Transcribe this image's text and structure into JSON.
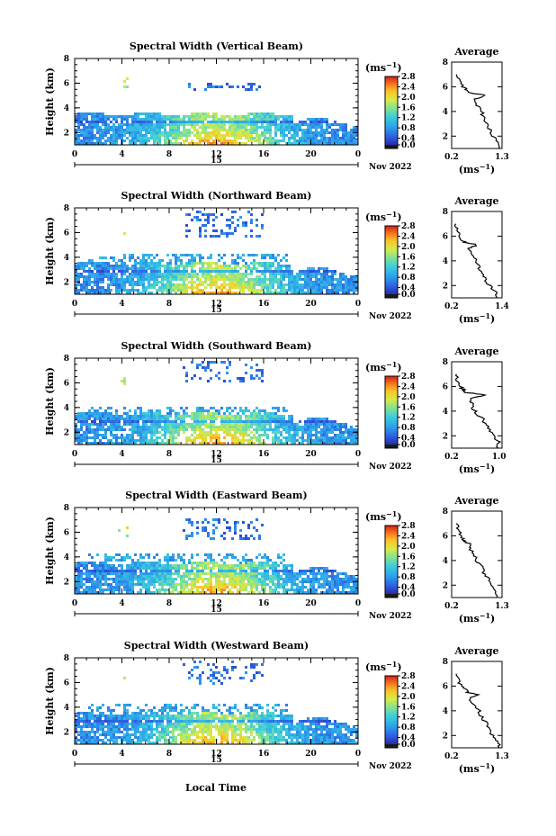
{
  "figure": {
    "xlabel": "Local Time",
    "month_label": "Nov 2022",
    "day_label": "15",
    "colorbar_unit": "(ms",
    "unit_exponent": "−1",
    "avg_title": "Average",
    "avg_xunit": "(ms",
    "colorbar_ticks": [
      "0.0",
      "0.4",
      "0.8",
      "1.2",
      "1.6",
      "2.0",
      "2.4",
      "2.8"
    ]
  },
  "chart_data": [
    {
      "type": "heatmap",
      "title": "Spectral Width (Vertical Beam)",
      "ylabel": "Height (km)",
      "x_ticks": [
        "0",
        "4",
        "8",
        "12",
        "16",
        "20",
        "0"
      ],
      "xlim": [
        0,
        24
      ],
      "ylim": [
        1,
        8
      ],
      "y_ticks": [
        "2",
        "4",
        "6",
        "8"
      ],
      "colorbar_range": [
        0.0,
        2.8
      ],
      "seed": 11,
      "top_cloud_km": [
        5.5,
        6.2
      ],
      "profile": {
        "type": "line",
        "title": "Average",
        "xlim": [
          0.2,
          1.3
        ],
        "x_ticks": [
          "0.2",
          "1.3"
        ],
        "ylim": [
          1,
          8
        ],
        "y_ticks": [
          "2",
          "4",
          "6",
          "8"
        ],
        "height_km": [
          1.0,
          1.5,
          2.0,
          2.5,
          3.0,
          3.5,
          4.0,
          4.5,
          5.0,
          5.3,
          5.5,
          5.7,
          6.0,
          6.5,
          7.0
        ],
        "width_ms": [
          1.25,
          1.2,
          1.1,
          1.05,
          0.95,
          0.9,
          0.85,
          0.75,
          0.7,
          0.95,
          0.6,
          0.55,
          0.45,
          0.35,
          0.3
        ]
      }
    },
    {
      "type": "heatmap",
      "title": "Spectral Width (Northward Beam)",
      "ylabel": "Height (km)",
      "x_ticks": [
        "0",
        "4",
        "8",
        "12",
        "16",
        "20",
        "0"
      ],
      "xlim": [
        0,
        24
      ],
      "ylim": [
        1,
        8
      ],
      "y_ticks": [
        "2",
        "4",
        "6",
        "8"
      ],
      "colorbar_range": [
        0.0,
        2.8
      ],
      "seed": 23,
      "top_cloud_km": [
        5.8,
        7.8
      ],
      "profile": {
        "type": "line",
        "title": "Average",
        "xlim": [
          0.2,
          1.4
        ],
        "x_ticks": [
          "0.2",
          "1.4"
        ],
        "ylim": [
          1,
          8
        ],
        "y_ticks": [
          "2",
          "4",
          "6",
          "8"
        ],
        "height_km": [
          1.0,
          1.5,
          2.0,
          2.5,
          3.0,
          3.5,
          4.0,
          4.5,
          5.0,
          5.3,
          5.5,
          5.7,
          6.0,
          6.5,
          7.0
        ],
        "width_ms": [
          1.3,
          1.25,
          1.1,
          1.0,
          0.9,
          0.85,
          0.8,
          0.7,
          0.6,
          0.8,
          0.5,
          0.45,
          0.4,
          0.35,
          0.3
        ]
      }
    },
    {
      "type": "heatmap",
      "title": "Spectral Width (Southward Beam)",
      "ylabel": "Height (km)",
      "x_ticks": [
        "0",
        "4",
        "8",
        "12",
        "16",
        "20",
        "0"
      ],
      "xlim": [
        0,
        24
      ],
      "ylim": [
        1,
        8
      ],
      "y_ticks": [
        "2",
        "4",
        "6",
        "8"
      ],
      "colorbar_range": [
        0.0,
        2.8
      ],
      "seed": 37,
      "top_cloud_km": [
        6.2,
        7.8
      ],
      "profile": {
        "type": "line",
        "title": "Average",
        "xlim": [
          0.2,
          1.05
        ],
        "x_ticks": [
          "0.2",
          "1.0"
        ],
        "ylim": [
          1,
          8
        ],
        "y_ticks": [
          "2",
          "4",
          "6",
          "8"
        ],
        "height_km": [
          1.0,
          1.5,
          2.0,
          2.5,
          3.0,
          3.5,
          4.0,
          4.5,
          5.0,
          5.3,
          5.5,
          5.7,
          6.0,
          6.5,
          7.0
        ],
        "width_ms": [
          1.0,
          0.98,
          0.9,
          0.85,
          0.75,
          0.7,
          0.6,
          0.55,
          0.5,
          0.8,
          0.45,
          0.4,
          0.35,
          0.3,
          0.28
        ]
      }
    },
    {
      "type": "heatmap",
      "title": "Spectral Width (Eastward Beam)",
      "ylabel": "Height (km)",
      "x_ticks": [
        "0",
        "4",
        "8",
        "12",
        "16",
        "20",
        "0"
      ],
      "xlim": [
        0,
        24
      ],
      "ylim": [
        1,
        8
      ],
      "y_ticks": [
        "2",
        "4",
        "6",
        "8"
      ],
      "colorbar_range": [
        0.0,
        2.8
      ],
      "seed": 41,
      "top_cloud_km": [
        5.5,
        7.2
      ],
      "profile": {
        "type": "line",
        "title": "Average",
        "xlim": [
          0.2,
          1.3
        ],
        "x_ticks": [
          "0.2",
          "1.3"
        ],
        "ylim": [
          1,
          8
        ],
        "y_ticks": [
          "2",
          "4",
          "6",
          "8"
        ],
        "height_km": [
          1.0,
          1.5,
          2.0,
          2.5,
          3.0,
          3.5,
          4.0,
          4.5,
          5.0,
          5.3,
          5.5,
          5.7,
          6.0,
          6.5,
          7.0
        ],
        "width_ms": [
          1.2,
          1.15,
          1.1,
          1.0,
          0.9,
          0.85,
          0.75,
          0.7,
          0.6,
          0.65,
          0.5,
          0.45,
          0.4,
          0.35,
          0.3
        ]
      }
    },
    {
      "type": "heatmap",
      "title": "Spectral Width (Westward Beam)",
      "ylabel": "Height (km)",
      "x_ticks": [
        "0",
        "4",
        "8",
        "12",
        "16",
        "20",
        "0"
      ],
      "xlim": [
        0,
        24
      ],
      "ylim": [
        1,
        8
      ],
      "y_ticks": [
        "2",
        "4",
        "6",
        "8"
      ],
      "colorbar_range": [
        0.0,
        2.8
      ],
      "seed": 53,
      "top_cloud_km": [
        6.0,
        7.8
      ],
      "profile": {
        "type": "line",
        "title": "Average",
        "xlim": [
          0.2,
          1.3
        ],
        "x_ticks": [
          "0.2",
          "1.3"
        ],
        "ylim": [
          1,
          8
        ],
        "y_ticks": [
          "2",
          "4",
          "6",
          "8"
        ],
        "height_km": [
          1.0,
          1.5,
          2.0,
          2.5,
          3.0,
          3.5,
          4.0,
          4.5,
          5.0,
          5.3,
          5.5,
          5.7,
          6.0,
          6.5,
          7.0
        ],
        "width_ms": [
          1.25,
          1.2,
          1.1,
          1.0,
          0.95,
          0.85,
          0.8,
          0.7,
          0.6,
          0.75,
          0.55,
          0.5,
          0.4,
          0.35,
          0.3
        ]
      }
    }
  ]
}
